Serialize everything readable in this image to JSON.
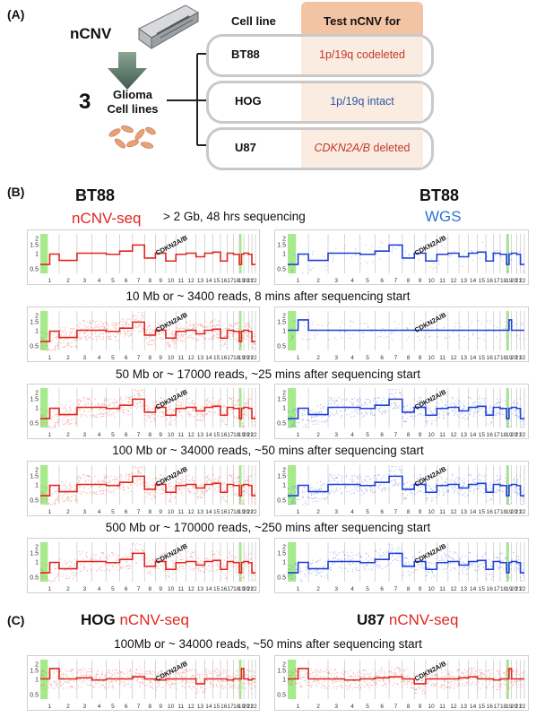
{
  "panel_a": {
    "label": "(A)",
    "device": "nCNV",
    "count": "3",
    "glioma_line1": "Glioma",
    "glioma_line2": "Cell lines",
    "col_cellline": "Cell line",
    "col_test": "Test nCNV for",
    "rows": [
      {
        "line": "BT88",
        "test": "1p/19q codeleted",
        "color": "#c0392b",
        "italic": ""
      },
      {
        "line": "HOG",
        "test": "1p/19q intact",
        "color": "#2c5aa0",
        "italic": ""
      },
      {
        "line": "U87",
        "test": " deleted",
        "color": "#c0392b",
        "italic": "CDKN2A/B"
      }
    ]
  },
  "panel_b": {
    "label": "(B)",
    "left_title": "BT88",
    "left_method": "nCNV-seq",
    "right_title": "BT88",
    "right_method": "WGS",
    "captions": [
      "> 2 Gb, 48 hrs sequencing",
      "10 Mb or ~ 3400 reads, 8 mins after sequencing start",
      "50 Mb or ~ 17000 reads, ~25 mins after sequencing start",
      "100 Mb or ~ 34000 reads, ~50 mins after sequencing start",
      "500 Mb or ~ 170000 reads, ~250 mins after sequencing start"
    ]
  },
  "panel_c": {
    "label": "(C)",
    "left_title": "HOG",
    "left_method": "nCNV-seq",
    "right_title": "U87",
    "right_method": "nCNV-seq",
    "caption": "100Mb or ~ 34000 reads, ~50 mins after sequencing start"
  },
  "plot_axis": {
    "y_ticks": [
      "2",
      "1.5",
      "1",
      "0.5"
    ],
    "x_ticks": [
      "1",
      "2",
      "3",
      "4",
      "5",
      "6",
      "7",
      "8",
      "9",
      "10",
      "11",
      "12",
      "13",
      "14",
      "15",
      "16",
      "17",
      "18",
      "19",
      "20",
      "21",
      "22"
    ],
    "annotation": "CDKN2A/B"
  },
  "colors": {
    "ncnv": "#e0261f",
    "wgs": "#1f3fd8",
    "highlight": "#a6ea8c",
    "accent_test_bg": "#f3c4a3"
  }
}
